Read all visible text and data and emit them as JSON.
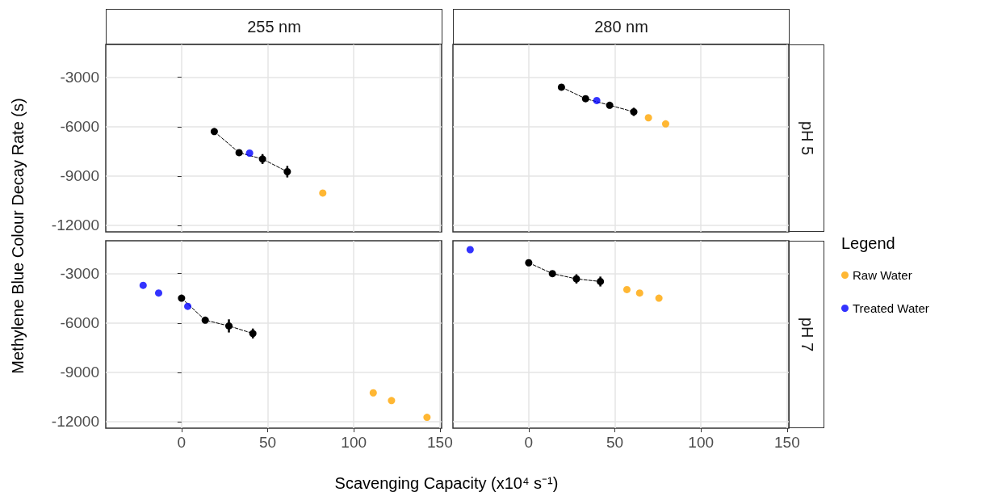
{
  "chart_data": [
    {
      "type": "scatter",
      "title": "255 nm",
      "ylabel": "Methylene Blue Colour Decay Rate (s)",
      "xlim": [
        -44,
        151
      ],
      "xticks": [
        0,
        50,
        100,
        150
      ],
      "ylim": [
        -12400,
        -1000
      ],
      "yticks": [
        -12000,
        -9000,
        -6000,
        -3000
      ],
      "grid": true,
      "tick_labels": "y",
      "marker": "circle",
      "series": [
        {
          "type": "line",
          "line_style": "dashed",
          "color": "#000000",
          "x": [
            19,
            33.4,
            47,
            61.4
          ],
          "values": [
            -6300,
            -7580,
            -7970,
            -8740
          ],
          "errors": [
            null,
            null,
            300,
            350
          ]
        },
        {
          "color": "#ffa500",
          "x": [
            82
          ],
          "values": [
            -10040
          ]
        },
        {
          "color": "#0000ff",
          "x": [
            39.5
          ],
          "values": [
            -7610
          ]
        }
      ]
    },
    {
      "type": "scatter",
      "title": "280 nm",
      "annotations": [
        "pH 5"
      ],
      "xlim": [
        -44,
        151
      ],
      "xticks": [
        0,
        50,
        100,
        150
      ],
      "ylim": [
        -12400,
        -1000
      ],
      "yticks": [
        -12000,
        -9000,
        -6000,
        -3000
      ],
      "grid": true,
      "tick_labels": false,
      "marker": "circle",
      "series": [
        {
          "type": "line",
          "line_style": "dashed",
          "color": "#000000",
          "x": [
            19,
            33,
            47,
            61
          ],
          "values": [
            -3600,
            -4300,
            -4700,
            -5100
          ],
          "errors": [
            null,
            null,
            null,
            250
          ]
        },
        {
          "color": "#ffa500",
          "x": [
            69.5,
            79.5
          ],
          "values": [
            -5460,
            -5830
          ]
        },
        {
          "color": "#0000ff",
          "x": [
            39.5
          ],
          "values": [
            -4410
          ]
        }
      ]
    },
    {
      "type": "scatter",
      "xlabel": "Scavenging Capacity (x10⁴ s⁻¹)",
      "xlim": [
        -44,
        151
      ],
      "xticks": [
        0,
        50,
        100,
        150
      ],
      "ylim": [
        -12400,
        -1000
      ],
      "yticks": [
        -12000,
        -9000,
        -6000,
        -3000
      ],
      "grid": true,
      "marker": "circle",
      "series": [
        {
          "type": "line",
          "line_style": "dashed",
          "color": "#000000",
          "x": [
            0,
            13.75,
            27.5,
            41.4
          ],
          "values": [
            -4490,
            -5830,
            -6180,
            -6640
          ],
          "errors": [
            null,
            null,
            400,
            300
          ]
        },
        {
          "color": "#ffa500",
          "x": [
            111.3,
            121.9,
            142.5
          ],
          "values": [
            -10250,
            -10720,
            -11740
          ]
        },
        {
          "color": "#0000ff",
          "x": [
            -22.3,
            -13.3,
            3.6
          ],
          "values": [
            -3710,
            -4180,
            -4990
          ]
        }
      ]
    },
    {
      "type": "scatter",
      "subtitle": "pH 7",
      "legend_title": "Legend",
      "legend": "right",
      "xlim": [
        -44,
        151
      ],
      "xticks": [
        0,
        50,
        100,
        150
      ],
      "ylim": [
        -12400,
        -1000
      ],
      "yticks": [
        -12000,
        -9000,
        -6000,
        -3000
      ],
      "grid": true,
      "tick_labels": "x",
      "marker": "circle",
      "series": [
        {
          "type": "line",
          "line_style": "dashed",
          "color": "#000000",
          "x": [
            0,
            13.75,
            27.7,
            41.6
          ],
          "values": [
            -2340,
            -3000,
            -3320,
            -3480
          ],
          "errors": [
            null,
            null,
            280,
            300
          ]
        },
        {
          "name": "Raw Water",
          "color": "#ffa500",
          "x": [
            57,
            64.4,
            75.6
          ],
          "values": [
            -3970,
            -4180,
            -4490
          ]
        },
        {
          "name": "Treated Water",
          "color": "#0000ff",
          "x": [
            -34
          ],
          "values": [
            -1540
          ]
        }
      ]
    }
  ]
}
